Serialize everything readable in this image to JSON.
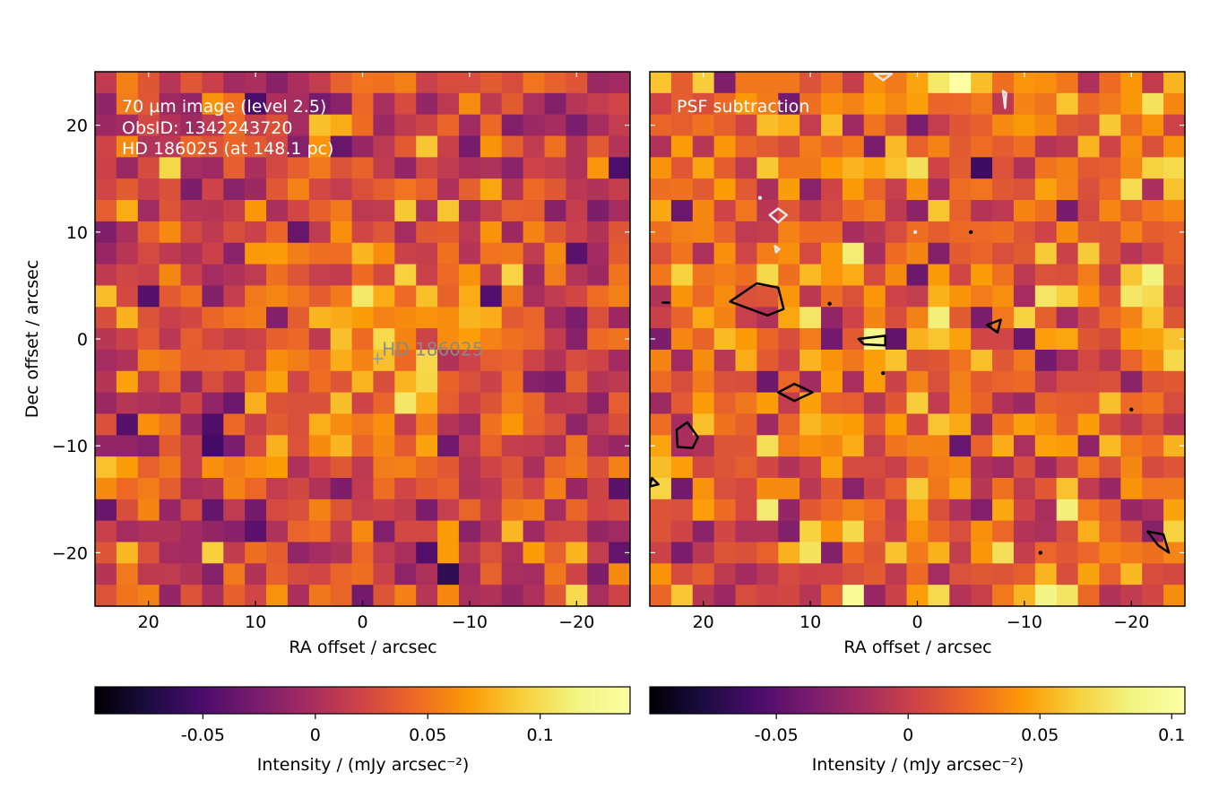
{
  "chart_data": [
    {
      "type": "heatmap",
      "panel": "left",
      "x_range": [
        25,
        -25
      ],
      "y_range": [
        -25,
        25
      ],
      "grid_size": 25,
      "annotations": [
        "70 µm image (level 2.5)",
        "ObsID: 1342243720",
        "HD 186025 (at 148.1 pc)"
      ],
      "star_marker": {
        "label": "HD 186025",
        "x": -1.4,
        "y": -1.8
      },
      "xlabel": "RA offset / arcsec",
      "ylabel": "Dec offset / arcsec",
      "xticks": [
        20,
        10,
        0,
        -10,
        -20
      ],
      "xtick_labels": [
        "20",
        "10",
        "0",
        "−10",
        "−20"
      ],
      "yticks": [
        20,
        10,
        0,
        -10,
        -20
      ],
      "ytick_labels": [
        "20",
        "10",
        "0",
        "−10",
        "−20"
      ],
      "colorbar": {
        "label": "Intensity / (mJy arcsec⁻²)",
        "range": [
          -0.098,
          0.14
        ],
        "ticks": [
          -0.05,
          0,
          0.05,
          0.1
        ],
        "tick_labels": [
          "-0.05",
          "0",
          "0.05",
          "0.1"
        ]
      },
      "contours": []
    },
    {
      "type": "heatmap",
      "panel": "right",
      "x_range": [
        25,
        -25
      ],
      "y_range": [
        -25,
        25
      ],
      "grid_size": 25,
      "annotations": [
        "PSF subtraction"
      ],
      "xlabel": "RA offset / arcsec",
      "xticks": [
        20,
        10,
        0,
        -10,
        -20
      ],
      "xtick_labels": [
        "20",
        "10",
        "0",
        "−10",
        "−20"
      ],
      "yticks": [
        20,
        10,
        0,
        -10,
        -20
      ],
      "colorbar": {
        "label": "Intensity / (mJy arcsec⁻²)",
        "range": [
          -0.098,
          0.105
        ],
        "ticks": [
          -0.05,
          0,
          0.05,
          0.1
        ],
        "tick_labels": [
          "-0.05",
          "0",
          "0.05",
          "0.1"
        ]
      },
      "contours": [
        {
          "color": "black",
          "pts": [
            [
              17.5,
              3.5
            ],
            [
              15,
              5.2
            ],
            [
              13,
              4.8
            ],
            [
              12.5,
              2.8
            ],
            [
              14,
              2.2
            ]
          ]
        },
        {
          "color": "black",
          "pts": [
            [
              5.5,
              0
            ],
            [
              3,
              0.3
            ],
            [
              3,
              -0.6
            ],
            [
              5,
              -0.5
            ]
          ]
        },
        {
          "color": "black",
          "pts": [
            [
              -6.5,
              1.3
            ],
            [
              -7.8,
              1.8
            ],
            [
              -7.5,
              0.6
            ]
          ]
        },
        {
          "color": "black",
          "pts": [
            [
              13,
              -5
            ],
            [
              11.5,
              -4.2
            ],
            [
              9.8,
              -5
            ],
            [
              11.5,
              -5.8
            ]
          ]
        },
        {
          "color": "black",
          "pts": [
            [
              22.5,
              -8.5
            ],
            [
              21.5,
              -7.8
            ],
            [
              20.5,
              -9.2
            ],
            [
              21,
              -10.2
            ],
            [
              22.4,
              -10.1
            ]
          ]
        },
        {
          "color": "black",
          "pts": [
            [
              -21.5,
              -18
            ],
            [
              -23,
              -18.3
            ],
            [
              -23.5,
              -20
            ],
            [
              -22.5,
              -19.3
            ]
          ]
        },
        {
          "color": "black",
          "pts": [
            [
              24.8,
              -13
            ],
            [
              24.2,
              -13.6
            ],
            [
              25,
              -13.8
            ]
          ]
        },
        {
          "color": "black",
          "pts": [
            [
              23.8,
              3.4
            ],
            [
              23.2,
              3.4
            ]
          ]
        },
        {
          "color": "white",
          "pts": [
            [
              13,
              12.2
            ],
            [
              12.2,
              11.6
            ],
            [
              13,
              10.9
            ],
            [
              13.8,
              11.6
            ]
          ]
        },
        {
          "color": "white",
          "pts": [
            [
              -8,
              23.2
            ],
            [
              -8.3,
              23
            ],
            [
              -8.2,
              21.6
            ]
          ]
        },
        {
          "color": "white",
          "pts": [
            [
              4,
              24.8
            ],
            [
              3.2,
              24.2
            ],
            [
              2.4,
              24.8
            ]
          ]
        },
        {
          "color": "white",
          "pts": [
            [
              13.3,
              8.7
            ],
            [
              12.9,
              8.4
            ],
            [
              13.2,
              8.1
            ]
          ]
        }
      ],
      "contour_dots": [
        {
          "color": "black",
          "x": 8.2,
          "y": 3.3
        },
        {
          "color": "black",
          "x": -20,
          "y": -6.6
        },
        {
          "color": "black",
          "x": -11.5,
          "y": -20
        },
        {
          "color": "black",
          "x": 3.2,
          "y": -3.2
        },
        {
          "color": "black",
          "x": -5,
          "y": 10
        },
        {
          "color": "white",
          "x": 0.2,
          "y": 10
        },
        {
          "color": "white",
          "x": 14.7,
          "y": 13.2
        }
      ]
    }
  ]
}
